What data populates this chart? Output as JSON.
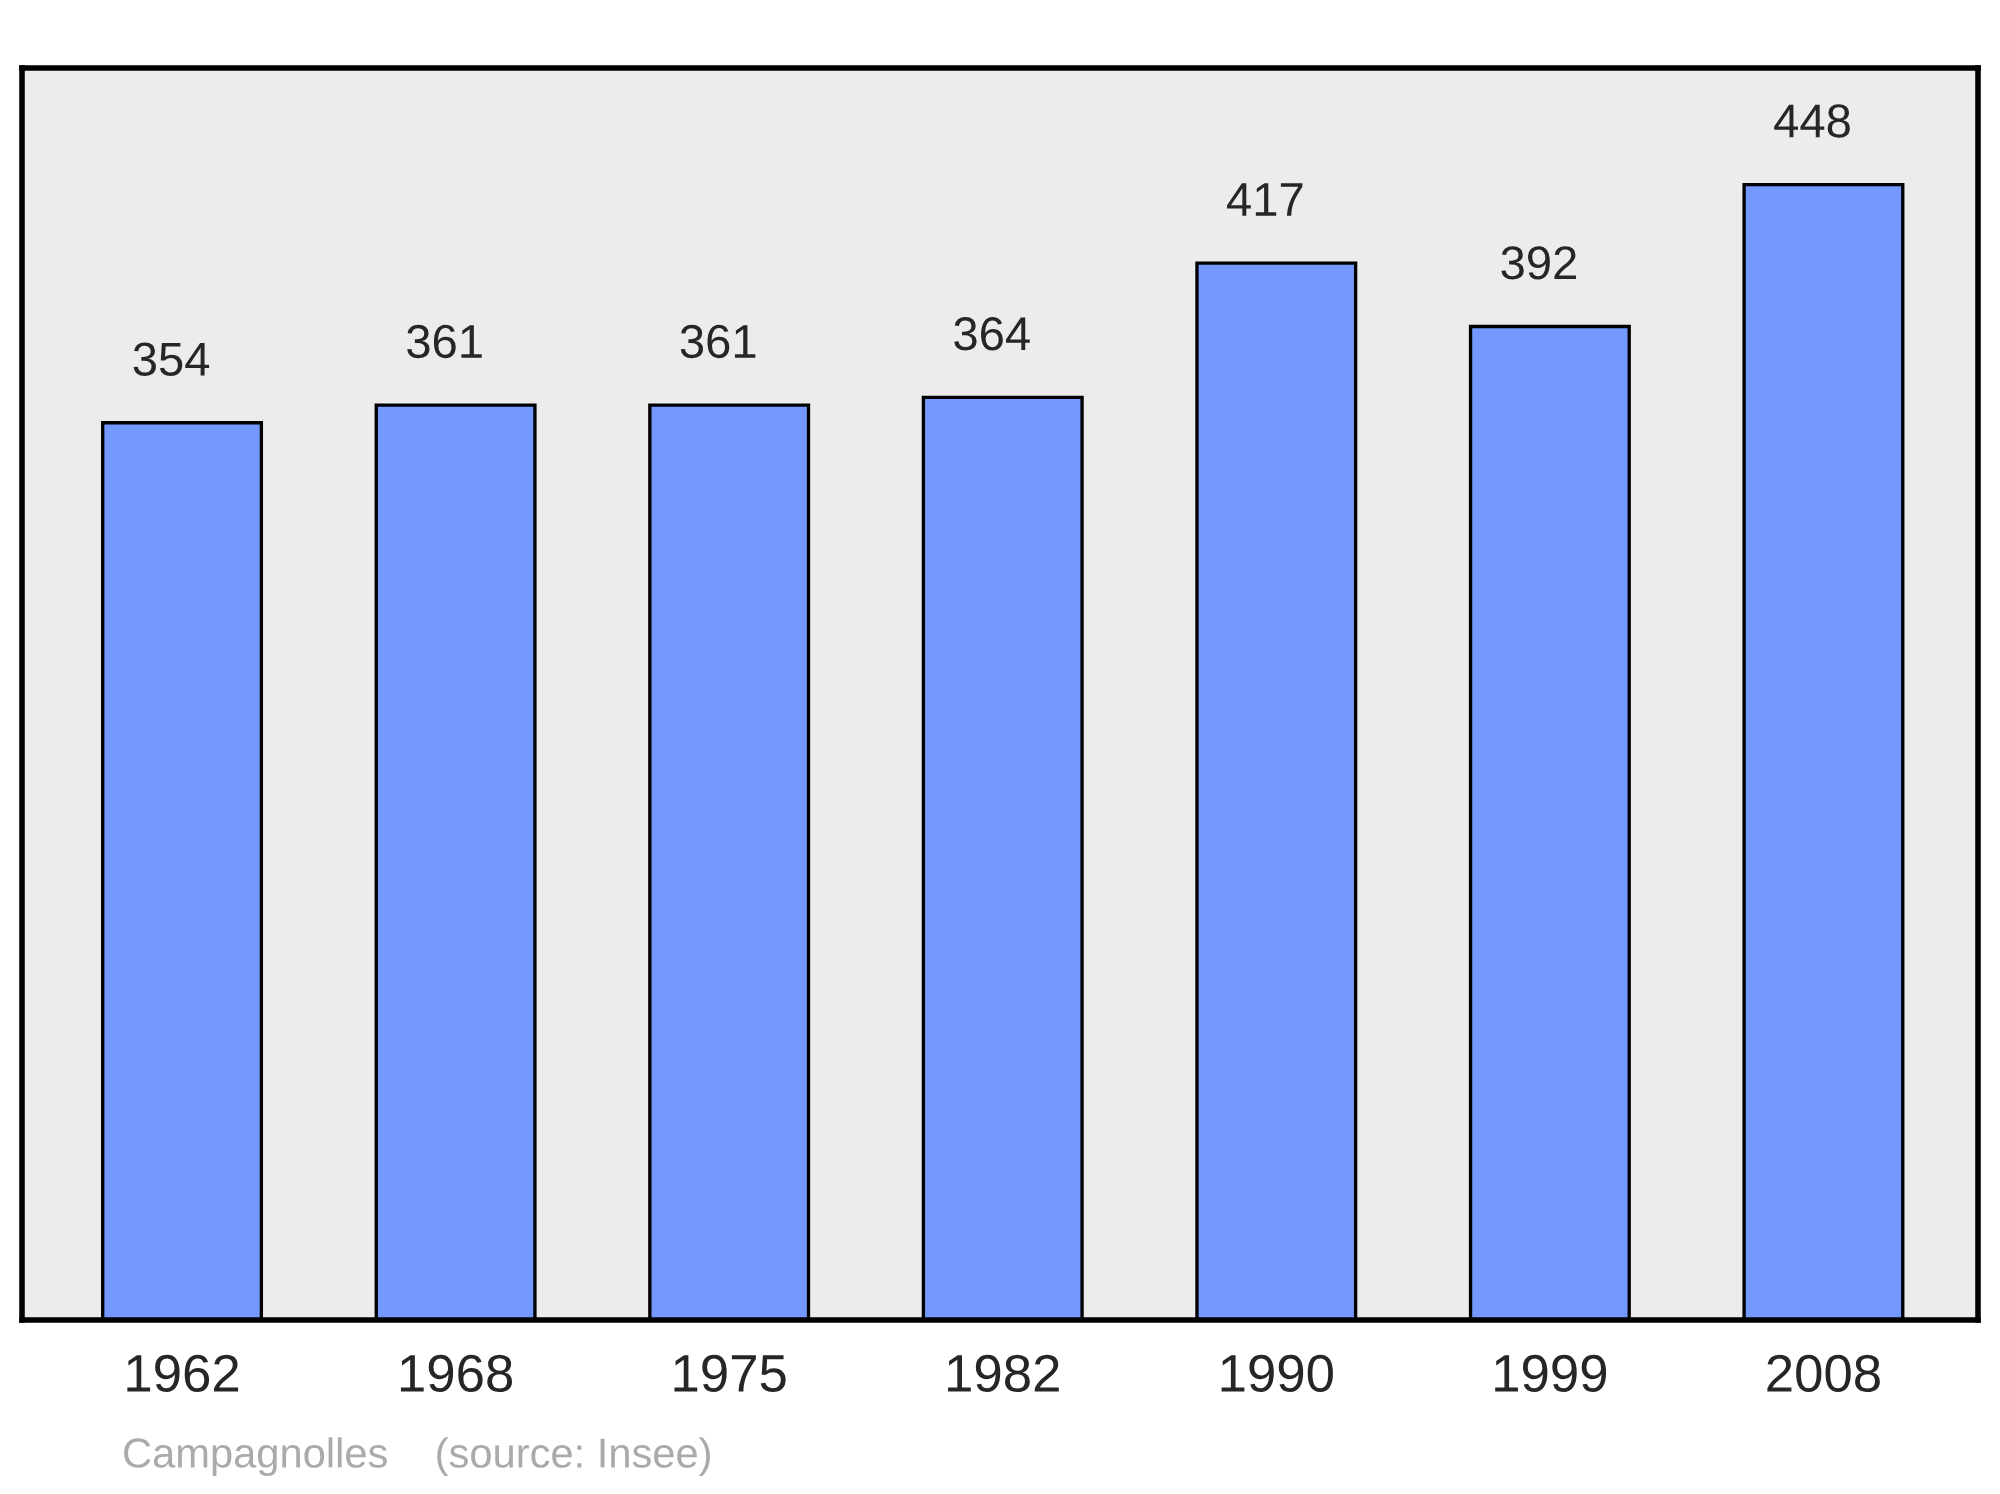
{
  "chart_data": {
    "type": "bar",
    "categories": [
      "1962",
      "1968",
      "1975",
      "1982",
      "1990",
      "1999",
      "2008"
    ],
    "values": [
      354,
      361,
      361,
      364,
      417,
      392,
      448
    ],
    "color": "#7399ff",
    "ylim": [
      0,
      494
    ],
    "data_labels": true,
    "tick_labels": "x",
    "grid": false,
    "legend": false,
    "annotations": [
      "Campagnolles    (source: Insee)"
    ]
  }
}
